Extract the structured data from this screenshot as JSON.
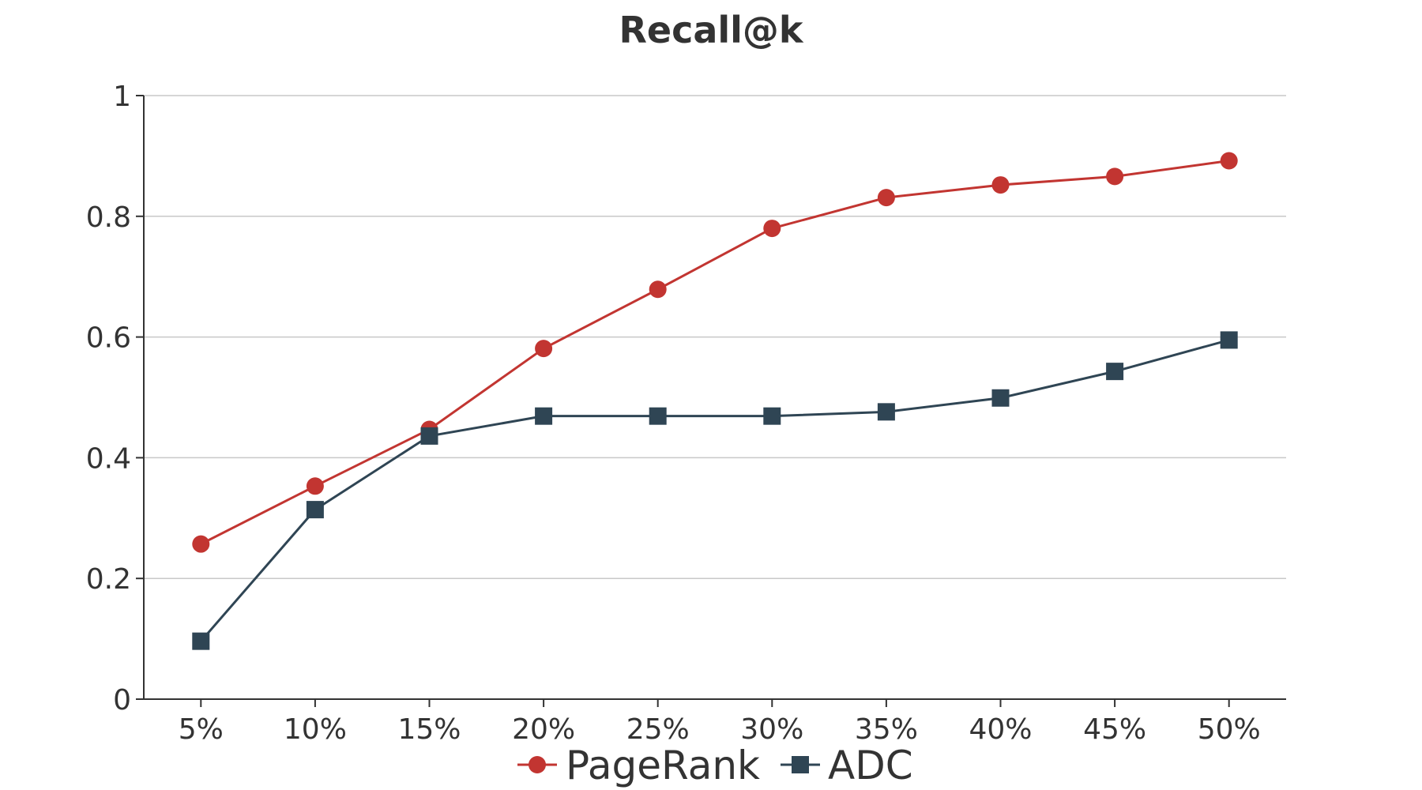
{
  "chart_data": {
    "type": "line",
    "title": "Recall@k",
    "xlabel": "",
    "ylabel": "",
    "categories": [
      "5%",
      "10%",
      "15%",
      "20%",
      "25%",
      "30%",
      "35%",
      "40%",
      "45%",
      "50%"
    ],
    "ylim": [
      0,
      1
    ],
    "yticks": [
      0,
      0.2,
      0.4,
      0.6,
      0.8,
      1
    ],
    "ytick_labels": [
      "0",
      "0.2",
      "0.4",
      "0.6",
      "0.8",
      "1"
    ],
    "grid": true,
    "legend_position": "bottom",
    "series": [
      {
        "name": "PageRank",
        "color": "#c23531",
        "marker": "circle",
        "values": [
          0.257,
          0.353,
          0.447,
          0.581,
          0.679,
          0.78,
          0.831,
          0.852,
          0.866,
          0.892
        ]
      },
      {
        "name": "ADC",
        "color": "#2f4554",
        "marker": "square",
        "values": [
          0.096,
          0.314,
          0.436,
          0.469,
          0.469,
          0.469,
          0.476,
          0.499,
          0.543,
          0.595
        ]
      }
    ]
  }
}
